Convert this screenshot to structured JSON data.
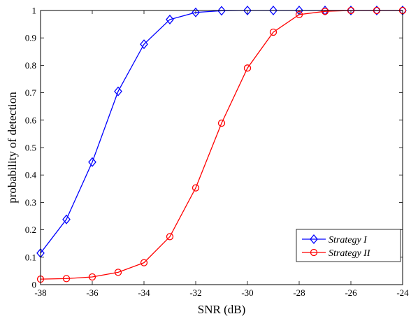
{
  "chart_data": {
    "type": "line",
    "xlabel": "SNR (dB)",
    "ylabel": "probability of detection",
    "xlim": [
      -38,
      -24
    ],
    "ylim": [
      0,
      1
    ],
    "grid": false,
    "legend_position": "bottom-right",
    "x_ticks": [
      -38,
      -36,
      -34,
      -32,
      -30,
      -28,
      -26,
      -24
    ],
    "x_tick_labels": [
      "-38",
      "-36",
      "-34",
      "-32",
      "-30",
      "-28",
      "-26",
      "-24"
    ],
    "y_ticks": [
      0,
      0.1,
      0.2,
      0.3,
      0.4,
      0.5,
      0.6,
      0.7,
      0.8,
      0.9,
      1
    ],
    "y_tick_labels": [
      "0",
      "0.1",
      "0.2",
      "0.3",
      "0.4",
      "0.5",
      "0.6",
      "0.7",
      "0.8",
      "0.9",
      "1"
    ],
    "x": [
      -38,
      -37,
      -36,
      -35,
      -34,
      -33,
      -32,
      -31,
      -30,
      -29,
      -28,
      -27,
      -26,
      -25,
      -24
    ],
    "series": [
      {
        "name": "Strategy I",
        "color": "#0000ff",
        "marker": "diamond",
        "values": [
          0.115,
          0.238,
          0.447,
          0.705,
          0.877,
          0.967,
          0.993,
          0.999,
          1.0,
          1.0,
          1.0,
          1.0,
          1.0,
          1.0,
          1.0
        ]
      },
      {
        "name": "Strategy II",
        "color": "#ff0000",
        "marker": "circle",
        "values": [
          0.02,
          0.022,
          0.028,
          0.045,
          0.08,
          0.175,
          0.353,
          0.589,
          0.79,
          0.921,
          0.985,
          0.997,
          1.0,
          1.0,
          1.0
        ]
      }
    ]
  }
}
